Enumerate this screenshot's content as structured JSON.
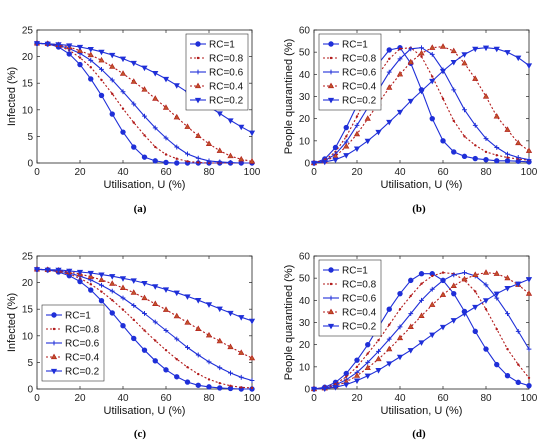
{
  "styles": {
    "RC=1": {
      "color": "#1f2fd8",
      "marker": "circle",
      "dash": ""
    },
    "RC=0.8": {
      "color": "#b21a1a",
      "marker": "dot",
      "dash": "2,2"
    },
    "RC=0.6": {
      "color": "#1f2fd8",
      "marker": "plus",
      "dash": ""
    },
    "RC=0.4": {
      "color": "#b21a1a",
      "marker": "triangle",
      "dash": "2,2"
    },
    "RC=0.2": {
      "color": "#1f2fd8",
      "marker": "tridown",
      "dash": ""
    }
  },
  "chart_data": [
    {
      "type": "line",
      "caption": "(a)",
      "xlabel": "Utilisation, U (%)",
      "ylabel": "Infected (%)",
      "xlim": [
        0,
        100
      ],
      "ylim": [
        0,
        25
      ],
      "xticks": [
        0,
        20,
        40,
        60,
        80,
        100
      ],
      "yticks": [
        0,
        5,
        10,
        15,
        20,
        25
      ],
      "legend": "top-right",
      "x": [
        0,
        5,
        10,
        15,
        20,
        25,
        30,
        35,
        40,
        45,
        50,
        55,
        60,
        65,
        70,
        75,
        80,
        85,
        90,
        95,
        100
      ],
      "series": [
        {
          "name": "RC=1",
          "values": [
            22.5,
            22.4,
            21.8,
            20.5,
            18.5,
            15.8,
            12.7,
            9.2,
            5.8,
            3.0,
            1.1,
            0.4,
            0.1,
            0,
            0,
            0,
            0,
            0,
            0,
            0,
            0
          ]
        },
        {
          "name": "RC=0.8",
          "values": [
            22.5,
            22.4,
            22.0,
            21.2,
            19.8,
            18.0,
            15.6,
            13.0,
            10.2,
            7.6,
            5.2,
            3.0,
            1.6,
            0.8,
            0.3,
            0.1,
            0,
            0,
            0,
            0,
            0
          ]
        },
        {
          "name": "RC=0.6",
          "values": [
            22.5,
            22.4,
            22.1,
            21.5,
            20.6,
            19.3,
            17.6,
            15.6,
            13.4,
            11.1,
            8.8,
            6.6,
            4.7,
            3.0,
            1.7,
            0.9,
            0.4,
            0.2,
            0.1,
            0,
            0
          ]
        },
        {
          "name": "RC=0.4",
          "values": [
            22.5,
            22.4,
            22.2,
            21.8,
            21.1,
            20.3,
            19.3,
            18.1,
            16.8,
            15.3,
            13.8,
            12.1,
            10.4,
            8.6,
            6.8,
            5.1,
            3.6,
            2.3,
            1.3,
            0.7,
            0.3
          ]
        },
        {
          "name": "RC=0.2",
          "values": [
            22.5,
            22.4,
            22.3,
            22.1,
            21.8,
            21.4,
            20.9,
            20.3,
            19.6,
            18.8,
            17.9,
            16.9,
            15.8,
            14.6,
            13.3,
            11.9,
            10.6,
            9.3,
            8.0,
            6.8,
            5.7
          ]
        }
      ]
    },
    {
      "type": "line",
      "caption": "(b)",
      "xlabel": "Utilisation, U (%)",
      "ylabel": "People quarantined (%)",
      "xlim": [
        0,
        100
      ],
      "ylim": [
        0,
        60
      ],
      "xticks": [
        0,
        20,
        40,
        60,
        80,
        100
      ],
      "yticks": [
        0,
        10,
        20,
        30,
        40,
        50,
        60
      ],
      "legend": "top-left",
      "x": [
        0,
        5,
        10,
        15,
        20,
        25,
        30,
        35,
        40,
        45,
        50,
        55,
        60,
        65,
        70,
        75,
        80,
        85,
        90,
        95,
        100
      ],
      "series": [
        {
          "name": "RC=1",
          "values": [
            0,
            1.8,
            7,
            16,
            26,
            36,
            45,
            51,
            52,
            45,
            33,
            20,
            10,
            5,
            3,
            2,
            1.5,
            1,
            1,
            0.8,
            0.5
          ]
        },
        {
          "name": "RC=0.8",
          "values": [
            0,
            1.3,
            5,
            12,
            21,
            31,
            40,
            47,
            51.5,
            52,
            48,
            39,
            29,
            19,
            12,
            8,
            5,
            3.5,
            2.5,
            1.8,
            1.2
          ]
        },
        {
          "name": "RC=0.6",
          "values": [
            0,
            1,
            4,
            9.5,
            17,
            25,
            33,
            41,
            47,
            51.5,
            52,
            49,
            42,
            33,
            24,
            17,
            11,
            7,
            4,
            2.5,
            1.5
          ]
        },
        {
          "name": "RC=0.4",
          "values": [
            0,
            0.8,
            3,
            7.5,
            13,
            20,
            27,
            34,
            40,
            45.5,
            49.5,
            52,
            52.5,
            50.5,
            45,
            38,
            30,
            21,
            15,
            9,
            5.5
          ]
        },
        {
          "name": "RC=0.2",
          "values": [
            0,
            0.5,
            1.5,
            3.5,
            6.5,
            10,
            14,
            18.5,
            23,
            28,
            32.5,
            37,
            41.5,
            45.5,
            49,
            51.5,
            52,
            51.5,
            50,
            47.5,
            44
          ]
        }
      ]
    },
    {
      "type": "line",
      "caption": "(c)",
      "xlabel": "Utilisation, U (%)",
      "ylabel": "Infected (%)",
      "xlim": [
        0,
        100
      ],
      "ylim": [
        0,
        25
      ],
      "xticks": [
        0,
        20,
        40,
        60,
        80,
        100
      ],
      "yticks": [
        0,
        5,
        10,
        15,
        20,
        25
      ],
      "legend": "bottom-left",
      "x": [
        0,
        5,
        10,
        15,
        20,
        25,
        30,
        35,
        40,
        45,
        50,
        55,
        60,
        65,
        70,
        75,
        80,
        85,
        90,
        95,
        100
      ],
      "series": [
        {
          "name": "RC=1",
          "values": [
            22.5,
            22.4,
            22.0,
            21.3,
            20.2,
            18.6,
            16.6,
            14.3,
            11.9,
            9.5,
            7.3,
            5.3,
            3.6,
            2.3,
            1.3,
            0.7,
            0.4,
            0.2,
            0.1,
            0,
            0
          ]
        },
        {
          "name": "RC=0.8",
          "values": [
            22.5,
            22.4,
            22.1,
            21.6,
            20.8,
            19.7,
            18.3,
            16.7,
            14.9,
            13.0,
            11.0,
            9.1,
            7.3,
            5.6,
            4.1,
            2.8,
            1.8,
            1.1,
            0.6,
            0.3,
            0.2
          ]
        },
        {
          "name": "RC=0.6",
          "values": [
            22.5,
            22.4,
            22.2,
            21.8,
            21.2,
            20.5,
            19.5,
            18.4,
            17.1,
            15.7,
            14.2,
            12.6,
            11.0,
            9.4,
            7.8,
            6.4,
            5.1,
            4.0,
            3.0,
            2.2,
            1.6
          ]
        },
        {
          "name": "RC=0.4",
          "values": [
            22.5,
            22.4,
            22.3,
            22.0,
            21.6,
            21.1,
            20.5,
            19.8,
            19.0,
            18.1,
            17.1,
            16.0,
            14.9,
            13.7,
            12.5,
            11.3,
            10.1,
            9.0,
            7.9,
            6.8,
            5.8
          ]
        },
        {
          "name": "RC=0.2",
          "values": [
            22.5,
            22.4,
            22.4,
            22.2,
            22.0,
            21.8,
            21.5,
            21.2,
            20.8,
            20.4,
            19.9,
            19.3,
            18.7,
            18.1,
            17.4,
            16.7,
            15.9,
            15.1,
            14.3,
            13.5,
            12.8
          ]
        }
      ]
    },
    {
      "type": "line",
      "caption": "(d)",
      "xlabel": "Utilisation, U (%)",
      "ylabel": "People quarantined (%)",
      "xlim": [
        0,
        100
      ],
      "ylim": [
        0,
        60
      ],
      "xticks": [
        0,
        20,
        40,
        60,
        80,
        100
      ],
      "yticks": [
        0,
        10,
        20,
        30,
        40,
        50,
        60
      ],
      "legend": "top-left",
      "x": [
        0,
        5,
        10,
        15,
        20,
        25,
        30,
        35,
        40,
        45,
        50,
        55,
        60,
        65,
        70,
        75,
        80,
        85,
        90,
        95,
        100
      ],
      "series": [
        {
          "name": "RC=1",
          "values": [
            0,
            0.8,
            3,
            7,
            13,
            20,
            28,
            36,
            43,
            49,
            52,
            52,
            49,
            43,
            35,
            26,
            18,
            11,
            6,
            3,
            1.5
          ]
        },
        {
          "name": "RC=0.8",
          "values": [
            0,
            0.6,
            2.3,
            5.5,
            10,
            16,
            22,
            29,
            36,
            42,
            47.5,
            51,
            52.5,
            52,
            49,
            44,
            36,
            27,
            18,
            11,
            5
          ]
        },
        {
          "name": "RC=0.6",
          "values": [
            0,
            0.4,
            1.8,
            4.2,
            7.5,
            12,
            17,
            22.5,
            28,
            34,
            40,
            45,
            49,
            51.5,
            52.5,
            51,
            47,
            41,
            34,
            26,
            18
          ]
        },
        {
          "name": "RC=0.4",
          "values": [
            0,
            0.3,
            1.3,
            3.2,
            6,
            9.5,
            13.5,
            18,
            23,
            28,
            33,
            38,
            42.5,
            46.5,
            49.5,
            51.5,
            52.5,
            52,
            50,
            47,
            43
          ]
        },
        {
          "name": "RC=0.2",
          "values": [
            0,
            0.2,
            0.8,
            2,
            3.8,
            6,
            8.5,
            11.5,
            14.5,
            17.5,
            21,
            24.5,
            28,
            31,
            34,
            37,
            40,
            43,
            45.5,
            47.5,
            49.5
          ]
        }
      ]
    }
  ]
}
